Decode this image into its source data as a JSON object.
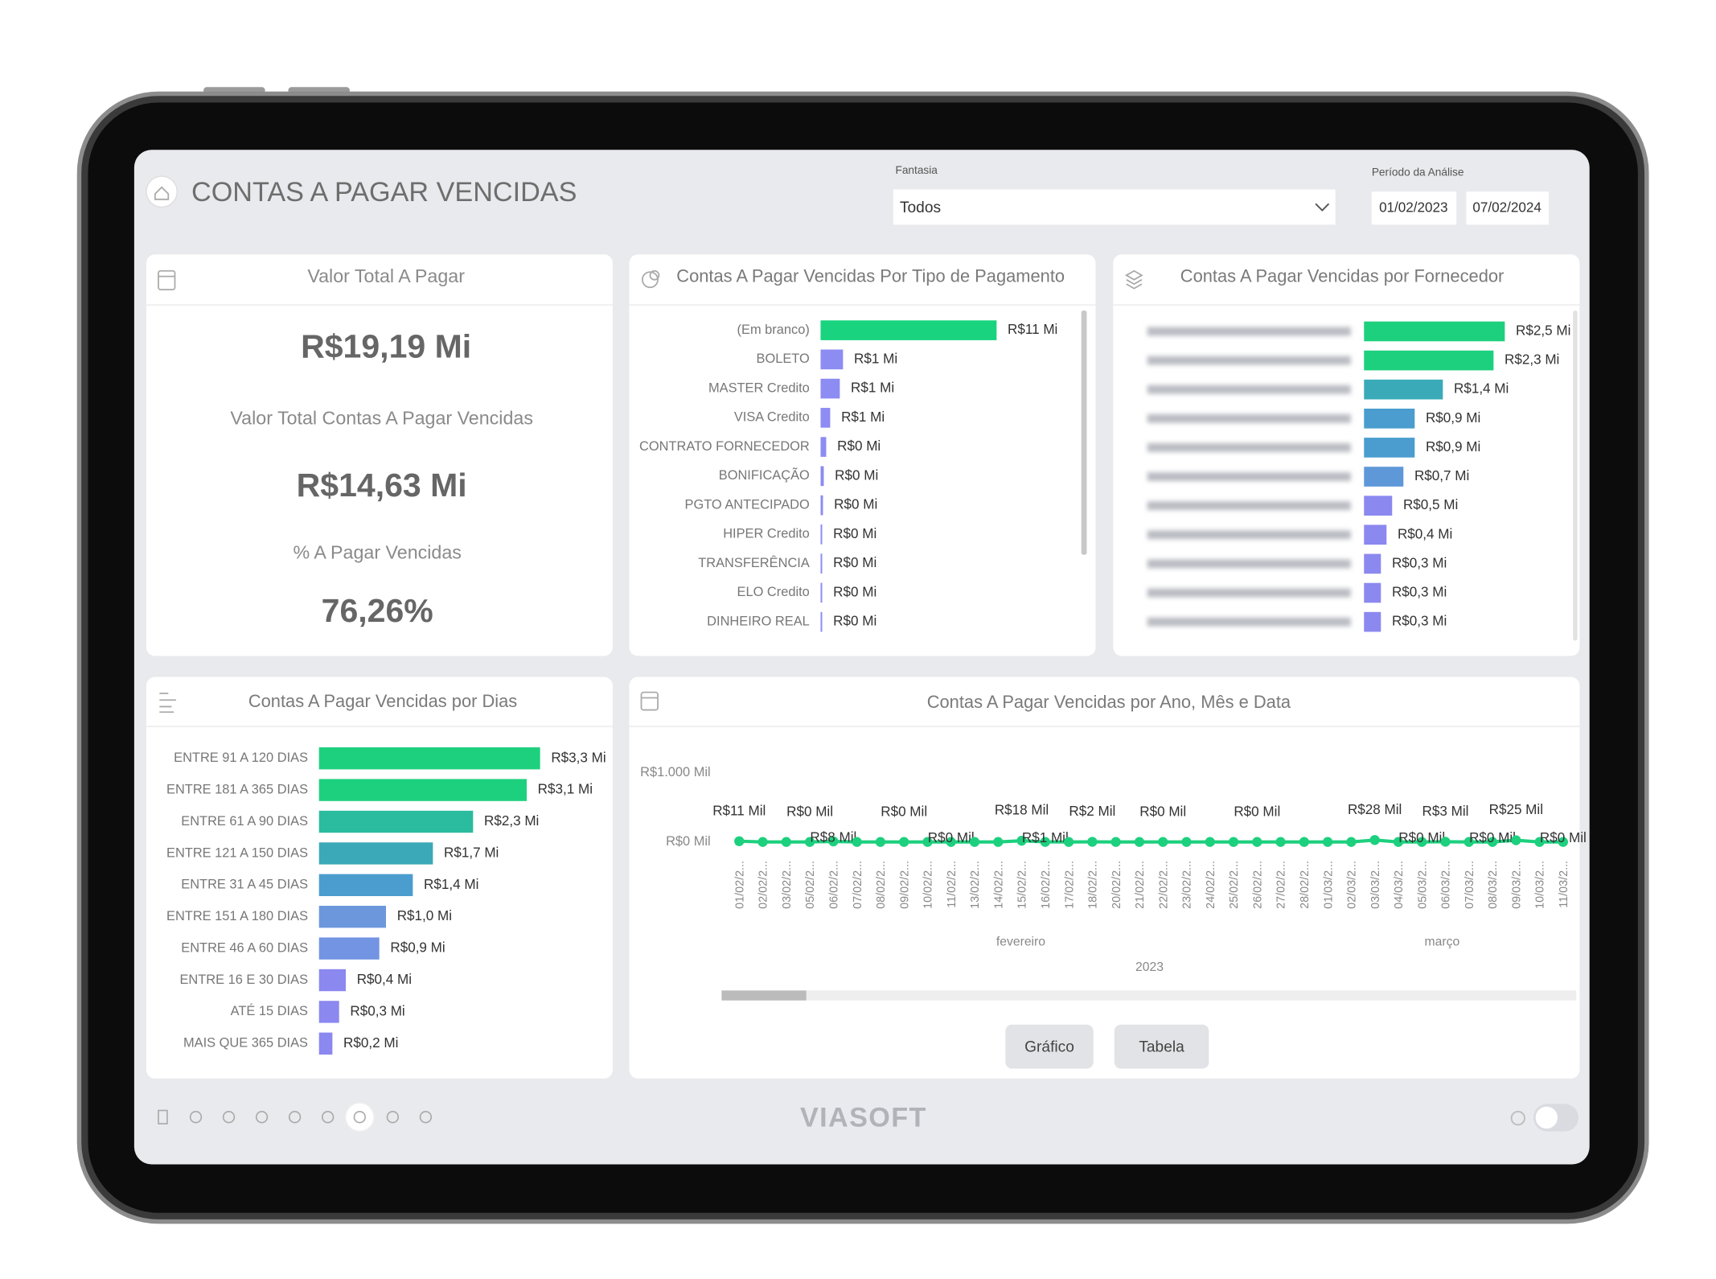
{
  "header": {
    "title": "CONTAS A PAGAR VENCIDAS",
    "filter_label": "Fantasia",
    "filter_value": "Todos",
    "period_label": "Período da Análise",
    "start_date": "01/02/2023",
    "end_date": "07/02/2024"
  },
  "kpis": {
    "title": "Valor Total A Pagar",
    "total": "R$19,19 Mi",
    "overdue_title": "Valor Total Contas A Pagar Vencidas",
    "overdue": "R$14,63 Mi",
    "pct_title": "% A Pagar Vencidas",
    "pct": "76,26%"
  },
  "chart_data": [
    {
      "type": "bar",
      "horizontal": true,
      "title": "Contas A Pagar Vencidas Por Tipo de Pagamento",
      "categories": [
        "(Em branco)",
        "BOLETO",
        "MASTER Credito",
        "VISA Credito",
        "CONTRATO FORNECEDOR",
        "BONIFICAÇÃO",
        "PGTO ANTECIPADO",
        "HIPER Credito",
        "TRANSFERÊNCIA",
        "ELO Credito",
        "DINHEIRO REAL"
      ],
      "values": [
        11,
        1.4,
        1.2,
        0.6,
        0.35,
        0.2,
        0.15,
        0.1,
        0.1,
        0.1,
        0.1
      ],
      "value_labels": [
        "R$11 Mi",
        "R$1 Mi",
        "R$1 Mi",
        "R$1 Mi",
        "R$0 Mi",
        "R$0 Mi",
        "R$0 Mi",
        "R$0 Mi",
        "R$0 Mi",
        "R$0 Mi",
        "R$0 Mi"
      ],
      "colors": [
        "#19d37f",
        "#8c8cf2",
        "#8c8cf2",
        "#8c8cf2",
        "#8c8cf2",
        "#8c8cf2",
        "#8c8cf2",
        "#8c8cf2",
        "#8c8cf2",
        "#8c8cf2",
        "#8c8cf2"
      ]
    },
    {
      "type": "bar",
      "horizontal": true,
      "title": "Contas A Pagar Vencidas por Fornecedor",
      "categories": [
        null,
        null,
        null,
        null,
        null,
        null,
        null,
        null,
        null,
        null,
        null
      ],
      "values": [
        2.5,
        2.3,
        1.4,
        0.9,
        0.9,
        0.7,
        0.5,
        0.4,
        0.3,
        0.3,
        0.3
      ],
      "value_labels": [
        "R$2,5 Mi",
        "R$2,3 Mi",
        "R$1,4 Mi",
        "R$0,9 Mi",
        "R$0,9 Mi",
        "R$0,7 Mi",
        "R$0,5 Mi",
        "R$0,4 Mi",
        "R$0,3 Mi",
        "R$0,3 Mi",
        "R$0,3 Mi"
      ],
      "colors": [
        "#1dd07e",
        "#1dd07e",
        "#3aaab8",
        "#4a9dce",
        "#4a9dce",
        "#5f98d8",
        "#8b88f0",
        "#8b88f0",
        "#8b88f0",
        "#8b88f0",
        "#8b88f0"
      ]
    },
    {
      "type": "bar",
      "horizontal": true,
      "title": "Contas A Pagar Vencidas por Dias",
      "categories": [
        "ENTRE 91 A 120 DIAS",
        "ENTRE 181 A 365 DIAS",
        "ENTRE 61 A 90 DIAS",
        "ENTRE 121 A 150 DIAS",
        "ENTRE 31 A 45 DIAS",
        "ENTRE 151 A 180 DIAS",
        "ENTRE 46 A 60 DIAS",
        "ENTRE 16 E 30 DIAS",
        "ATÉ 15 DIAS",
        "MAIS QUE 365 DIAS"
      ],
      "values": [
        3.3,
        3.1,
        2.3,
        1.7,
        1.4,
        1.0,
        0.9,
        0.4,
        0.3,
        0.2
      ],
      "value_labels": [
        "R$3,3 Mi",
        "R$3,1 Mi",
        "R$2,3 Mi",
        "R$1,7 Mi",
        "R$1,4 Mi",
        "R$1,0 Mi",
        "R$0,9 Mi",
        "R$0,4 Mi",
        "R$0,3 Mi",
        "R$0,2 Mi"
      ],
      "colors": [
        "#1dd07e",
        "#1dd07e",
        "#2bbb9e",
        "#3ba9b8",
        "#4a9dce",
        "#6d97dd",
        "#7294e2",
        "#8b88f0",
        "#8b88f0",
        "#8b88f0"
      ]
    },
    {
      "type": "line",
      "title": "Contas A Pagar Vencidas por Ano, Mês e Data",
      "categories": [
        "01/02/2...",
        "02/02/2...",
        "03/02/2...",
        "05/02/2...",
        "06/02/2...",
        "07/02/2...",
        "08/02/2...",
        "09/02/2...",
        "10/02/2...",
        "11/02/2...",
        "13/02/2...",
        "14/02/2...",
        "15/02/2...",
        "16/02/2...",
        "17/02/2...",
        "18/02/2...",
        "20/02/2...",
        "21/02/2...",
        "22/02/2...",
        "23/02/2...",
        "24/02/2...",
        "25/02/2...",
        "26/02/2...",
        "27/02/2...",
        "28/02/2...",
        "01/03/2...",
        "02/03/2...",
        "03/03/2...",
        "04/03/2...",
        "05/03/2...",
        "06/03/2...",
        "07/03/2...",
        "08/03/2...",
        "09/03/2...",
        "10/03/2...",
        "11/03/2..."
      ],
      "values": [
        11,
        0,
        0,
        0,
        8,
        0,
        0,
        0,
        0,
        0,
        0,
        0,
        18,
        1,
        0,
        2,
        0,
        0,
        0,
        0,
        0,
        0,
        0,
        0,
        0,
        0,
        0,
        28,
        0,
        0,
        3,
        0,
        0,
        25,
        0,
        0
      ],
      "value_labels": [
        "R$11 Mil",
        null,
        null,
        "R$0 Mil",
        "R$8 Mil",
        null,
        null,
        "R$0 Mil",
        null,
        "R$0 Mil",
        null,
        null,
        "R$18 Mil",
        "R$1 Mil",
        null,
        "R$2 Mil",
        null,
        null,
        "R$0 Mil",
        null,
        null,
        null,
        "R$0 Mil",
        null,
        null,
        null,
        null,
        "R$28 Mil",
        null,
        "R$0 Mil",
        "R$3 Mil",
        null,
        "R$0 Mil",
        "R$25 Mil",
        null,
        "R$0 Mil"
      ],
      "color": "#1dd07e",
      "ylim": [
        0,
        1000
      ],
      "yticks": [
        {
          "value": 0,
          "label": "R$0 Mil"
        },
        {
          "value": 1000,
          "label": "R$1.000 Mil"
        }
      ],
      "month_labels": [
        "fevereiro",
        "março"
      ],
      "year_label": "2023",
      "view_buttons": [
        "Gráfico",
        "Tabela"
      ]
    }
  ],
  "footer": {
    "logo": "VIASOFT"
  }
}
